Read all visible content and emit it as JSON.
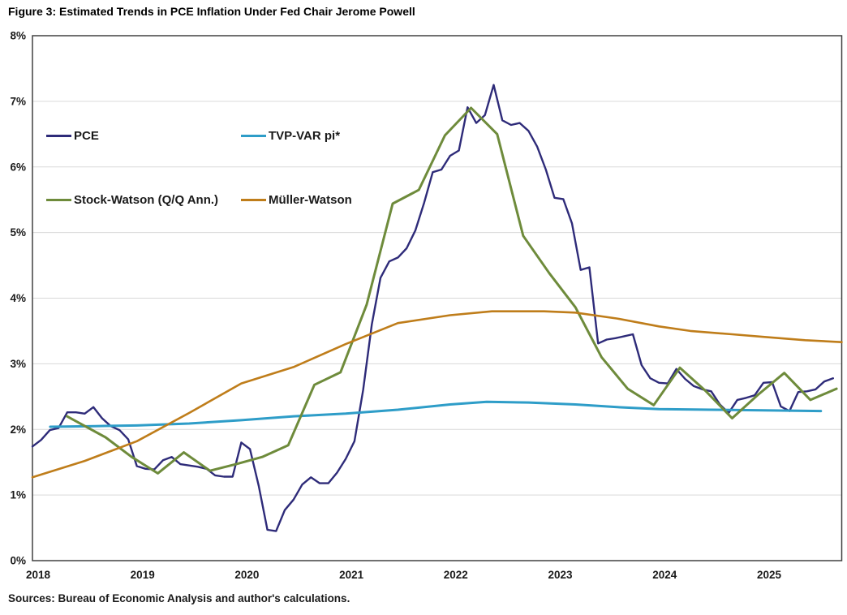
{
  "title": "Figure 3: Estimated Trends in PCE Inflation Under Fed Chair Jerome Powell",
  "source": "Sources: Bureau of Economic Analysis and author's calculations.",
  "chart_data": {
    "type": "line",
    "title": "Figure 3: Estimated Trends in PCE Inflation Under Fed Chair Jerome Powell",
    "xlabel": "",
    "ylabel": "",
    "x_range": [
      2018.0,
      2025.75
    ],
    "y_range_percent": [
      0,
      8
    ],
    "grid": "horizontal-only",
    "legend_position": "inside-top-left",
    "colors": {
      "grid": "#D9D9D9",
      "frame": "#404040",
      "text": "#1A1A1A"
    },
    "axes": {
      "y_ticks": [
        "0%",
        "1%",
        "2%",
        "3%",
        "4%",
        "5%",
        "6%",
        "7%",
        "8%"
      ],
      "x_ticks": [
        "2018",
        "2019",
        "2020",
        "2021",
        "2022",
        "2023",
        "2024",
        "2025"
      ]
    },
    "series": [
      {
        "id": "pce",
        "name": "PCE",
        "color": "#2E2B79",
        "width": 2.4,
        "frequency": "monthly",
        "monthly_start": 2018.0,
        "values": [
          1.74,
          1.84,
          1.99,
          2.02,
          2.26,
          2.26,
          2.24,
          2.34,
          2.17,
          2.05,
          1.99,
          1.85,
          1.44,
          1.4,
          1.39,
          1.53,
          1.58,
          1.47,
          1.45,
          1.43,
          1.4,
          1.3,
          1.28,
          1.28,
          1.8,
          1.7,
          1.14,
          0.47,
          0.45,
          0.77,
          0.93,
          1.16,
          1.27,
          1.18,
          1.18,
          1.34,
          1.55,
          1.82,
          2.6,
          3.6,
          4.31,
          4.56,
          4.62,
          4.76,
          5.03,
          5.45,
          5.92,
          5.96,
          6.17,
          6.25,
          6.91,
          6.67,
          6.79,
          7.25,
          6.71,
          6.64,
          6.67,
          6.55,
          6.31,
          5.96,
          5.53,
          5.51,
          5.14,
          4.43,
          4.47,
          3.31,
          3.37,
          3.39,
          3.42,
          3.45,
          2.98,
          2.78,
          2.71,
          2.7,
          2.92,
          2.77,
          2.66,
          2.61,
          2.58,
          2.38,
          2.25,
          2.45,
          2.48,
          2.52,
          2.71,
          2.72,
          2.35,
          2.28,
          2.57,
          2.58,
          2.61,
          2.73,
          2.78
        ]
      },
      {
        "id": "tvp-var",
        "name": "TVP-VAR pi*",
        "color": "#2E9DC8",
        "width": 3,
        "frequency": "smoothed",
        "points": [
          [
            2018.17,
            2.04
          ],
          [
            2018.6,
            2.05
          ],
          [
            2019.0,
            2.06
          ],
          [
            2019.5,
            2.09
          ],
          [
            2020.0,
            2.14
          ],
          [
            2020.5,
            2.2
          ],
          [
            2021.0,
            2.24
          ],
          [
            2021.5,
            2.3
          ],
          [
            2022.0,
            2.38
          ],
          [
            2022.35,
            2.42
          ],
          [
            2022.75,
            2.41
          ],
          [
            2023.2,
            2.38
          ],
          [
            2023.6,
            2.34
          ],
          [
            2024.0,
            2.31
          ],
          [
            2024.5,
            2.3
          ],
          [
            2025.0,
            2.29
          ],
          [
            2025.55,
            2.28
          ]
        ]
      },
      {
        "id": "stock-watson",
        "name": "Stock-Watson (Q/Q Ann.)",
        "color": "#6E8B3B",
        "width": 3,
        "frequency": "quarterly",
        "points": [
          [
            2018.33,
            2.2
          ],
          [
            2018.7,
            1.88
          ],
          [
            2018.95,
            1.58
          ],
          [
            2019.2,
            1.33
          ],
          [
            2019.45,
            1.65
          ],
          [
            2019.7,
            1.37
          ],
          [
            2019.95,
            1.47
          ],
          [
            2020.2,
            1.58
          ],
          [
            2020.45,
            1.76
          ],
          [
            2020.7,
            2.68
          ],
          [
            2020.95,
            2.87
          ],
          [
            2021.2,
            3.9
          ],
          [
            2021.45,
            5.44
          ],
          [
            2021.7,
            5.65
          ],
          [
            2021.95,
            6.48
          ],
          [
            2022.2,
            6.9
          ],
          [
            2022.45,
            6.5
          ],
          [
            2022.7,
            4.95
          ],
          [
            2022.95,
            4.38
          ],
          [
            2023.2,
            3.86
          ],
          [
            2023.45,
            3.1
          ],
          [
            2023.7,
            2.62
          ],
          [
            2023.95,
            2.37
          ],
          [
            2024.2,
            2.94
          ],
          [
            2024.45,
            2.58
          ],
          [
            2024.7,
            2.17
          ],
          [
            2024.95,
            2.53
          ],
          [
            2025.2,
            2.86
          ],
          [
            2025.45,
            2.45
          ],
          [
            2025.7,
            2.62
          ]
        ]
      },
      {
        "id": "muller-watson",
        "name": "Müller-Watson",
        "color": "#BF7D1A",
        "width": 2.6,
        "frequency": "smoothed",
        "points": [
          [
            2018.0,
            1.27
          ],
          [
            2018.5,
            1.52
          ],
          [
            2019.0,
            1.82
          ],
          [
            2019.5,
            2.25
          ],
          [
            2020.0,
            2.7
          ],
          [
            2020.5,
            2.95
          ],
          [
            2021.0,
            3.3
          ],
          [
            2021.5,
            3.62
          ],
          [
            2022.0,
            3.74
          ],
          [
            2022.4,
            3.8
          ],
          [
            2022.9,
            3.8
          ],
          [
            2023.2,
            3.78
          ],
          [
            2023.6,
            3.69
          ],
          [
            2024.0,
            3.57
          ],
          [
            2024.3,
            3.5
          ],
          [
            2024.7,
            3.45
          ],
          [
            2025.0,
            3.41
          ],
          [
            2025.4,
            3.36
          ],
          [
            2025.75,
            3.33
          ]
        ]
      }
    ]
  }
}
